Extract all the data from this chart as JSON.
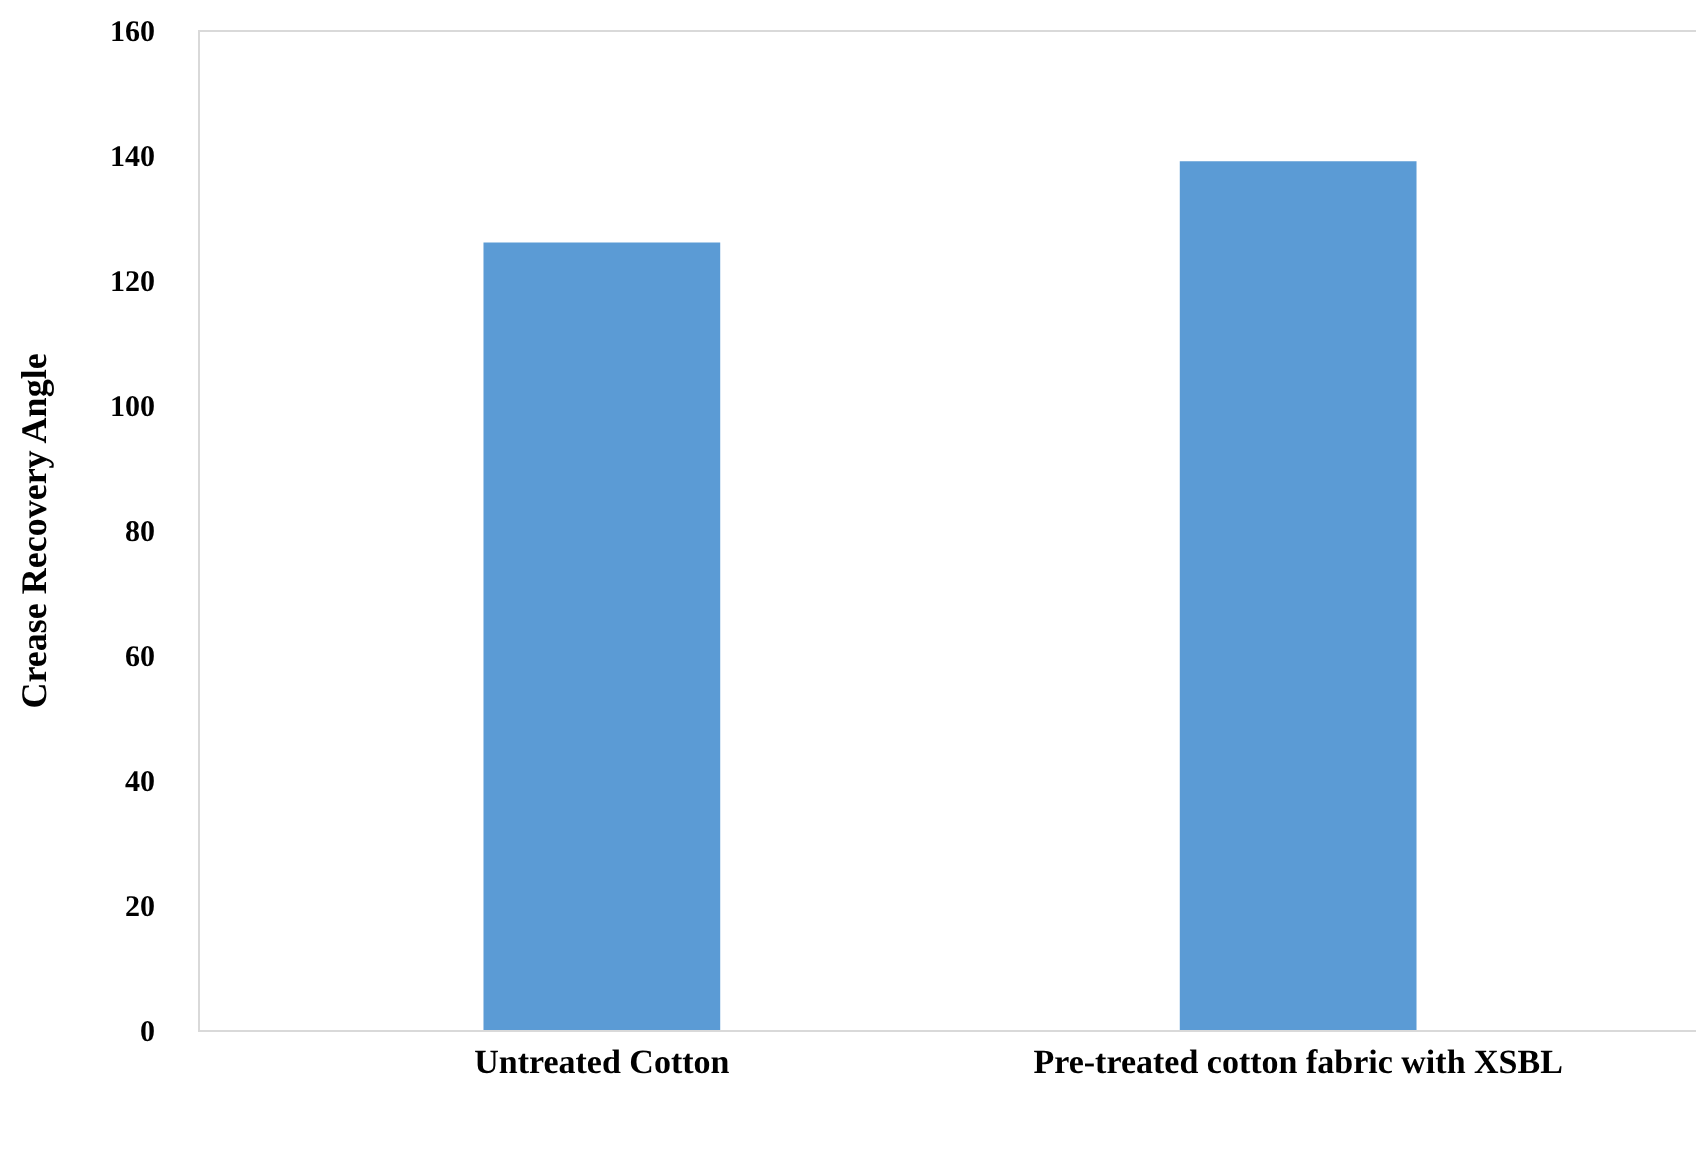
{
  "chart_data": {
    "type": "bar",
    "ylabel": "Crease Recovery Angle",
    "categories": [
      "Untreated Cotton",
      "Pre-treated cotton fabric with XSBL"
    ],
    "values": [
      126,
      139
    ],
    "color": "#5b9bd5",
    "ylim": [
      0,
      160
    ],
    "yticks": [
      0,
      20,
      40,
      60,
      80,
      100,
      120,
      140,
      160
    ],
    "grid": false
  }
}
